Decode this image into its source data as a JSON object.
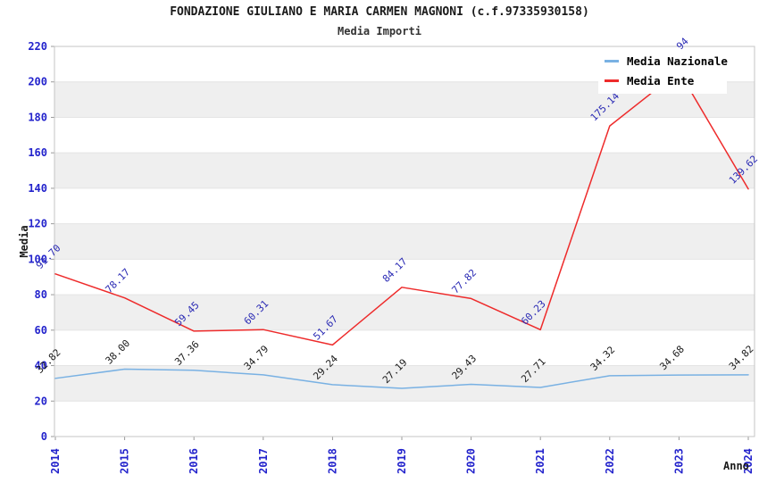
{
  "header": {
    "title": "FONDAZIONE GIULIANO E MARIA CARMEN MAGNONI (c.f.97335930158)",
    "subtitle": "Media Importi"
  },
  "legend": {
    "items": [
      {
        "label": "Media Nazionale",
        "color": "#79b1e3"
      },
      {
        "label": "Media Ente",
        "color": "#ee2b2b"
      }
    ]
  },
  "colors": {
    "axis_tick_text": "#2323cc",
    "data_label_ente": "#2a2ab4",
    "data_label_nazionale": "#1a1a1a",
    "band_gray": "#efefef",
    "gridline": "#e4e4e4",
    "plot_border": "#c6c6c6",
    "tick_mark": "#999999"
  },
  "chart_data": {
    "type": "line",
    "title": "FONDAZIONE GIULIANO E MARIA CARMEN MAGNONI (c.f.97335930158)",
    "subtitle": "Media Importi",
    "xlabel": "Anno",
    "ylabel": "Media",
    "ylim": [
      0,
      220
    ],
    "y_ticks": [
      0,
      20,
      40,
      60,
      80,
      100,
      120,
      140,
      160,
      180,
      200,
      220
    ],
    "categories": [
      "2014",
      "2015",
      "2016",
      "2017",
      "2018",
      "2019",
      "2020",
      "2021",
      "2022",
      "2023",
      "2024"
    ],
    "grid": "alternating horizontal bands, gray on 20-40/60-80/100-120/140-160/180-200",
    "legend_position": "top-right inside plot, white box overlapping chart",
    "series": [
      {
        "name": "Media Nazionale",
        "color": "#79b1e3",
        "label_color": "#1a1a1a",
        "values": [
          32.82,
          38.0,
          37.36,
          34.79,
          29.24,
          27.19,
          29.43,
          27.71,
          34.32,
          34.68,
          34.82
        ],
        "point_labels": [
          "32.82",
          "38.00",
          "37.36",
          "34.79",
          "29.24",
          "27.19",
          "29.43",
          "27.71",
          "34.32",
          "34.68",
          "34.82"
        ]
      },
      {
        "name": "Media Ente",
        "color": "#ee2b2b",
        "label_color": "#2a2ab4",
        "values": [
          91.7,
          78.17,
          59.45,
          60.31,
          51.67,
          84.17,
          77.82,
          60.23,
          175.14,
          205.94,
          139.62
        ],
        "point_labels": [
          "91.70",
          "78.17",
          "59.45",
          "60.31",
          "51.67",
          "84.17",
          "77.82",
          "60.23",
          "175.14",
          "205.94",
          "139.62"
        ]
      }
    ],
    "notes": {
      "media_ente_2023_label": "mostly hidden behind legend box, only top of rotated label visible; value estimated from line peak",
      "media_ente_2024_label": "clipped at right image edge after 139.6",
      "media_nazionale_2024_label": "clipped at right image edge after 34.8",
      "point_label_rotation_deg": -45,
      "x_tick_rotation_deg": -90
    }
  }
}
